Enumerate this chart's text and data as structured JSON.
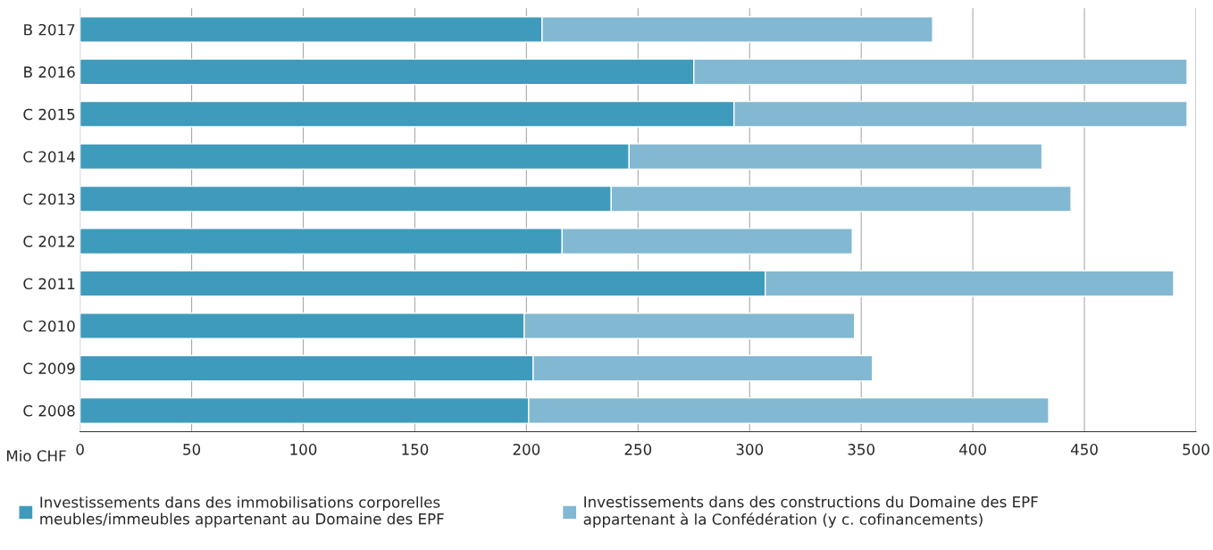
{
  "chart_data": {
    "type": "bar",
    "orientation": "horizontal",
    "stacked": true,
    "categories": [
      "B 2017",
      "B 2016",
      "C 2015",
      "C 2014",
      "C 2013",
      "C 2012",
      "C 2011",
      "C 2010",
      "C 2009",
      "C 2008"
    ],
    "series": [
      {
        "name": "Investissements dans des immobilisations corporelles\nmeubles/immeubles appartenant au Domaine des EPF",
        "color": "#3f9bbb",
        "values": [
          207,
          275,
          293,
          246,
          238,
          216,
          307,
          199,
          203,
          201
        ]
      },
      {
        "name": "Investissements dans des constructions du Domaine des EPF\nappartenant à la Confédération (y c. cofinancements)",
        "color": "#82b8d2",
        "values": [
          175,
          221,
          203,
          185,
          206,
          130,
          183,
          148,
          152,
          233
        ]
      }
    ],
    "xlabel": "Mio CHF",
    "xlim": [
      0,
      500
    ],
    "xticks": [
      0,
      50,
      100,
      150,
      200,
      250,
      300,
      350,
      400,
      450,
      500
    ],
    "grid": "x",
    "legend": "bottom"
  }
}
